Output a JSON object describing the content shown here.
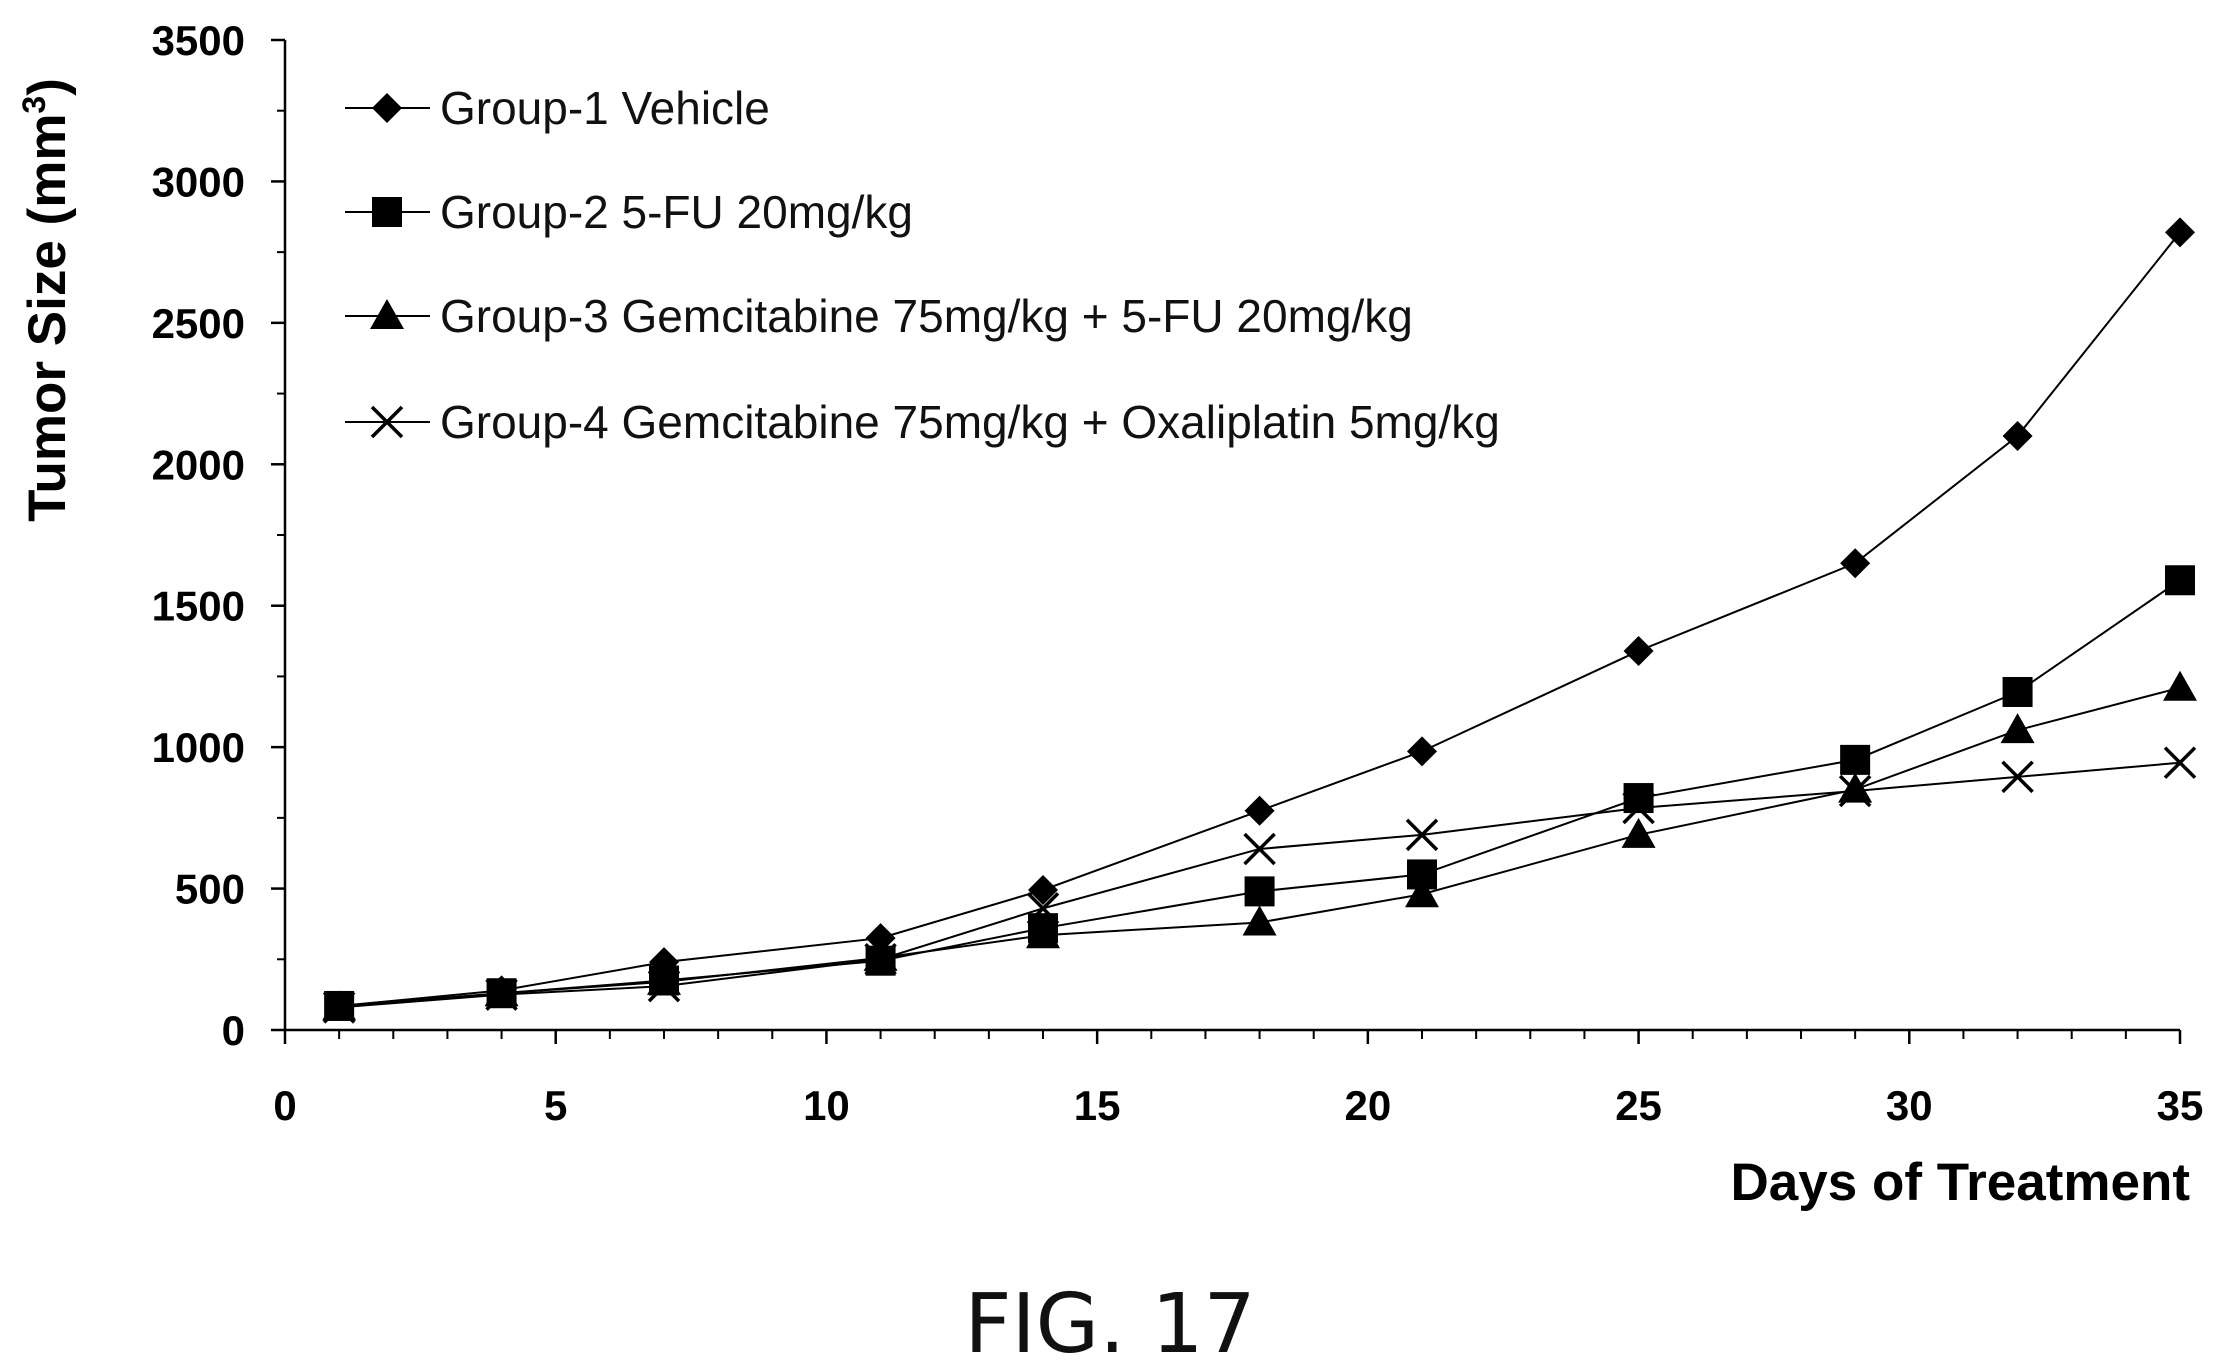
{
  "chart_data": {
    "type": "line",
    "title": "",
    "xlabel": "Days of Treatment",
    "ylabel": "Tumor Size (mm3)",
    "ylabel_main": "Tumor Size (mm",
    "ylabel_sup": "3",
    "ylabel_close": ")",
    "xlim": [
      0,
      35
    ],
    "ylim": [
      0,
      3500
    ],
    "xticks": [
      0,
      5,
      10,
      15,
      20,
      25,
      30,
      35
    ],
    "yticks": [
      0,
      500,
      1000,
      1500,
      2000,
      2500,
      3000,
      3500
    ],
    "grid": false,
    "legend_position": "top-left",
    "x": [
      1,
      4,
      7,
      11,
      14,
      18,
      21,
      25,
      29,
      32,
      35
    ],
    "series": [
      {
        "name": "Group-1 Vehicle",
        "marker": "diamond",
        "values": [
          85,
          140,
          240,
          325,
          495,
          775,
          985,
          1340,
          1650,
          2100,
          2820
        ]
      },
      {
        "name": "Group-2 5-FU 20mg/kg",
        "marker": "square",
        "values": [
          85,
          130,
          175,
          245,
          360,
          490,
          550,
          820,
          955,
          1195,
          1590
        ]
      },
      {
        "name": "Group-3 Gemcitabine  75mg/kg + 5-FU 20mg/kg",
        "marker": "triangle",
        "values": [
          80,
          130,
          170,
          255,
          335,
          380,
          480,
          690,
          850,
          1060,
          1210
        ]
      },
      {
        "name": "Group-4 Gemcitabine  75mg/kg + Oxaliplatin 5mg/kg",
        "marker": "x",
        "values": [
          80,
          125,
          155,
          250,
          430,
          640,
          690,
          785,
          845,
          895,
          945
        ]
      }
    ]
  },
  "figure_caption": "FIG. 17"
}
